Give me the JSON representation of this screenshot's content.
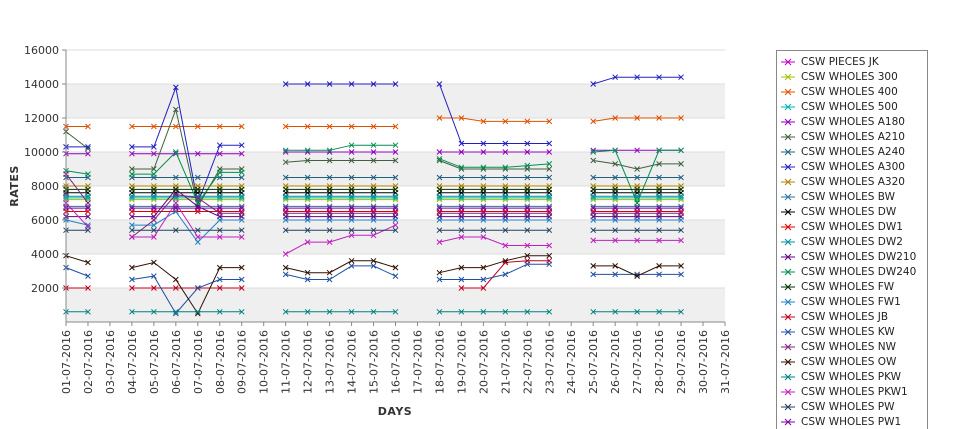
{
  "chart_data": {
    "type": "line",
    "title": "",
    "xlabel": "DAYS",
    "ylabel": "RATES",
    "ylim": [
      0,
      16000
    ],
    "yticks": [
      "2000",
      "4000",
      "6000",
      "8000",
      "10000",
      "12000",
      "14000",
      "16000"
    ],
    "categories": [
      "01-07-2016",
      "02-07-2016",
      "03-07-2016",
      "04-07-2016",
      "05-07-2016",
      "06-07-2016",
      "07-07-2016",
      "08-07-2016",
      "09-07-2016",
      "10-07-2016",
      "11-07-2016",
      "12-07-2016",
      "13-07-2016",
      "14-07-2016",
      "15-07-2016",
      "16-07-2016",
      "17-07-2016",
      "18-07-2016",
      "19-07-2016",
      "20-07-2016",
      "21-07-2016",
      "22-07-2016",
      "23-07-2016",
      "24-07-2016",
      "25-07-2016",
      "26-07-2016",
      "27-07-2016",
      "28-07-2016",
      "29-07-2016",
      "30-07-2016",
      "31-07-2016"
    ],
    "grid": true,
    "legend_position": "right",
    "series": [
      {
        "name": "CSW PIECES JK",
        "color": "#c000c0",
        "values": [
          7500,
          null,
          null,
          null,
          null,
          7300,
          null,
          null,
          null,
          null,
          null,
          null,
          null,
          null,
          null,
          null,
          null,
          null,
          null,
          null,
          null,
          null,
          null,
          null,
          null,
          null,
          null,
          null,
          null,
          null,
          null
        ]
      },
      {
        "name": "CSW WHOLES 300",
        "color": "#a0c000",
        "values": [
          7200,
          7200,
          null,
          7200,
          7200,
          7200,
          7200,
          7200,
          7200,
          null,
          7200,
          7200,
          7200,
          7200,
          7200,
          7200,
          null,
          7200,
          7200,
          7200,
          7200,
          7200,
          7200,
          null,
          7200,
          7200,
          7200,
          7200,
          7200,
          null,
          null
        ]
      },
      {
        "name": "CSW WHOLES 400",
        "color": "#e05000",
        "values": [
          11500,
          11500,
          null,
          11500,
          11500,
          11500,
          11500,
          11500,
          11500,
          null,
          11500,
          11500,
          11500,
          11500,
          11500,
          11500,
          null,
          12000,
          12000,
          11800,
          11800,
          11800,
          11800,
          null,
          11800,
          12000,
          12000,
          12000,
          12000,
          null,
          null
        ]
      },
      {
        "name": "CSW WHOLES 500",
        "color": "#00b0b0",
        "values": [
          7300,
          7300,
          null,
          7300,
          7300,
          7300,
          7300,
          7300,
          7300,
          null,
          7300,
          7300,
          7300,
          7300,
          7300,
          7300,
          null,
          7300,
          7300,
          7300,
          7300,
          7300,
          7300,
          null,
          7300,
          7300,
          7300,
          7300,
          7300,
          null,
          null
        ]
      },
      {
        "name": "CSW WHOLES A180",
        "color": "#9000c0",
        "values": [
          9900,
          9900,
          null,
          9900,
          9900,
          9900,
          9900,
          9900,
          9900,
          null,
          10000,
          10000,
          10000,
          10000,
          10000,
          10000,
          null,
          10000,
          10000,
          10000,
          10000,
          10000,
          10000,
          null,
          10100,
          10100,
          10100,
          10100,
          10100,
          null,
          null
        ]
      },
      {
        "name": "CSW WHOLES A210",
        "color": "#406040",
        "values": [
          11200,
          10200,
          null,
          9000,
          9000,
          12500,
          6800,
          9000,
          9000,
          null,
          9400,
          9500,
          9500,
          9500,
          9500,
          9500,
          null,
          9500,
          9000,
          9000,
          9000,
          9000,
          9000,
          null,
          9500,
          9300,
          9000,
          9300,
          9300,
          null,
          null
        ]
      },
      {
        "name": "CSW WHOLES A240",
        "color": "#206080",
        "values": [
          8500,
          8500,
          null,
          8500,
          8500,
          8500,
          8500,
          8500,
          8500,
          null,
          8500,
          8500,
          8500,
          8500,
          8500,
          8500,
          null,
          8500,
          8500,
          8500,
          8500,
          8500,
          8500,
          null,
          8500,
          8500,
          8500,
          8500,
          8500,
          null,
          null
        ]
      },
      {
        "name": "CSW WHOLES A300",
        "color": "#2020c0",
        "values": [
          10300,
          10300,
          null,
          10300,
          10300,
          13800,
          7000,
          10400,
          10400,
          null,
          14000,
          14000,
          14000,
          14000,
          14000,
          14000,
          null,
          14000,
          10500,
          10500,
          10500,
          10500,
          10500,
          null,
          14000,
          14400,
          14400,
          14400,
          14400,
          null,
          null
        ]
      },
      {
        "name": "CSW WHOLES A320",
        "color": "#b08000",
        "values": [
          8000,
          8000,
          null,
          8000,
          8000,
          8000,
          8000,
          8000,
          8000,
          null,
          8000,
          8000,
          8000,
          8000,
          8000,
          8000,
          null,
          8000,
          8000,
          8000,
          8000,
          8000,
          8000,
          null,
          8000,
          8000,
          8000,
          8000,
          8000,
          null,
          null
        ]
      },
      {
        "name": "CSW WHOLES BW",
        "color": "#3070a0",
        "values": [
          6800,
          6800,
          null,
          6800,
          6800,
          6800,
          6800,
          6800,
          6800,
          null,
          6800,
          6800,
          6800,
          6800,
          6800,
          6800,
          null,
          6800,
          6800,
          6800,
          6800,
          6800,
          6800,
          null,
          6800,
          6800,
          6800,
          6800,
          6800,
          null,
          null
        ]
      },
      {
        "name": "CSW WHOLES DW",
        "color": "#000000",
        "values": [
          7600,
          7600,
          null,
          7600,
          7600,
          7600,
          7600,
          7600,
          7600,
          null,
          7600,
          7600,
          7600,
          7600,
          7600,
          7600,
          null,
          7600,
          7600,
          7600,
          7600,
          7600,
          7600,
          null,
          7600,
          7600,
          7600,
          7600,
          7600,
          null,
          null
        ]
      },
      {
        "name": "CSW WHOLES DW1",
        "color": "#e00000",
        "values": [
          6500,
          6500,
          null,
          6500,
          6500,
          6500,
          6500,
          6500,
          6500,
          null,
          6500,
          6500,
          6500,
          6500,
          6500,
          6500,
          null,
          6500,
          6500,
          6500,
          6500,
          6500,
          6500,
          null,
          6500,
          6500,
          6500,
          6500,
          6500,
          null,
          null
        ]
      },
      {
        "name": "CSW WHOLES DW2",
        "color": "#0090a0",
        "values": [
          7400,
          7400,
          null,
          7400,
          7400,
          7400,
          7400,
          7400,
          7400,
          null,
          7400,
          7400,
          7400,
          7400,
          7400,
          7400,
          null,
          7400,
          7400,
          7400,
          7400,
          7400,
          7400,
          null,
          7400,
          7400,
          7400,
          7400,
          7400,
          null,
          null
        ]
      },
      {
        "name": "CSW WHOLES DW210",
        "color": "#600080",
        "values": [
          6200,
          6200,
          null,
          6200,
          6200,
          7800,
          6800,
          6200,
          6200,
          null,
          6200,
          6200,
          6200,
          6200,
          6200,
          6200,
          null,
          6200,
          6200,
          6200,
          6200,
          6200,
          6200,
          null,
          6200,
          6200,
          6200,
          6200,
          6200,
          null,
          null
        ]
      },
      {
        "name": "CSW WHOLES DW240",
        "color": "#009050",
        "values": [
          8900,
          8700,
          null,
          8700,
          8700,
          10000,
          7000,
          8800,
          8800,
          null,
          10100,
          10100,
          10100,
          10400,
          10400,
          10400,
          null,
          9600,
          9100,
          9100,
          9100,
          9200,
          9300,
          null,
          10000,
          10100,
          7000,
          10100,
          10100,
          null,
          null
        ]
      },
      {
        "name": "CSW WHOLES FW",
        "color": "#003000",
        "values": [
          7800,
          7800,
          null,
          7800,
          7800,
          7800,
          7800,
          7800,
          7800,
          null,
          7800,
          7800,
          7800,
          7800,
          7800,
          7800,
          null,
          7800,
          7800,
          7800,
          7800,
          7800,
          7800,
          null,
          7800,
          7800,
          7800,
          7800,
          7800,
          null,
          null
        ]
      },
      {
        "name": "CSW WHOLES FW1",
        "color": "#2080c0",
        "values": [
          6000,
          5700,
          null,
          5700,
          5700,
          6500,
          4700,
          6000,
          6000,
          null,
          6000,
          6000,
          6000,
          6000,
          6000,
          6000,
          null,
          6000,
          6000,
          6000,
          6000,
          6000,
          6000,
          null,
          6000,
          6000,
          6000,
          6000,
          6000,
          null,
          null
        ]
      },
      {
        "name": "CSW WHOLES JB",
        "color": "#c00020",
        "values": [
          2000,
          2000,
          null,
          2000,
          2000,
          2000,
          2000,
          2000,
          2000,
          null,
          null,
          null,
          null,
          null,
          null,
          null,
          null,
          null,
          2000,
          2000,
          3500,
          3600,
          3600,
          null,
          null,
          null,
          null,
          null,
          null,
          null,
          null
        ]
      },
      {
        "name": "CSW WHOLES KW",
        "color": "#2050a0",
        "values": [
          3200,
          2700,
          null,
          2500,
          2700,
          500,
          2000,
          2500,
          2500,
          null,
          2800,
          2500,
          2500,
          3300,
          3300,
          2700,
          null,
          2500,
          2500,
          2500,
          2800,
          3400,
          3400,
          null,
          2800,
          2800,
          2800,
          2800,
          2800,
          null,
          null
        ]
      },
      {
        "name": "CSW WHOLES NW",
        "color": "#802080",
        "values": [
          8700,
          7000,
          null,
          5000,
          6000,
          7500,
          7300,
          6400,
          6400,
          null,
          6400,
          6400,
          6400,
          6400,
          6400,
          6400,
          null,
          6400,
          6400,
          6400,
          6400,
          6400,
          6400,
          null,
          6400,
          6400,
          6400,
          6400,
          6400,
          null,
          null
        ]
      },
      {
        "name": "CSW WHOLES OW",
        "color": "#301000",
        "values": [
          3900,
          3500,
          null,
          3200,
          3500,
          2500,
          500,
          3200,
          3200,
          null,
          3200,
          2900,
          2900,
          3600,
          3600,
          3200,
          null,
          2900,
          3200,
          3200,
          3600,
          3900,
          3900,
          null,
          3300,
          3300,
          2700,
          3300,
          3300,
          null,
          null
        ]
      },
      {
        "name": "CSW WHOLES PKW",
        "color": "#008080",
        "values": [
          600,
          600,
          null,
          600,
          600,
          600,
          600,
          600,
          600,
          null,
          600,
          600,
          600,
          600,
          600,
          600,
          null,
          600,
          600,
          600,
          600,
          600,
          600,
          null,
          600,
          600,
          600,
          600,
          600,
          null,
          null
        ]
      },
      {
        "name": "CSW WHOLES PKW1",
        "color": "#c020c0",
        "values": [
          7000,
          5600,
          null,
          5000,
          5000,
          7000,
          5000,
          5000,
          5000,
          null,
          4000,
          4700,
          4700,
          5100,
          5100,
          5700,
          null,
          4700,
          5000,
          5000,
          4500,
          4500,
          4500,
          null,
          4800,
          4800,
          4800,
          4800,
          4800,
          null,
          null
        ]
      },
      {
        "name": "CSW WHOLES PW",
        "color": "#204060",
        "values": [
          5400,
          5400,
          null,
          5400,
          5400,
          5400,
          5400,
          5400,
          5400,
          null,
          5400,
          5400,
          5400,
          5400,
          5400,
          5400,
          null,
          5400,
          5400,
          5400,
          5400,
          5400,
          5400,
          null,
          5400,
          5400,
          5400,
          5400,
          5400,
          null,
          null
        ]
      },
      {
        "name": "CSW WHOLES PW1",
        "color": "#8000a0",
        "values": [
          6700,
          6700,
          null,
          6700,
          6700,
          6700,
          6700,
          6700,
          6700,
          null,
          6700,
          6700,
          6700,
          6700,
          6700,
          6700,
          null,
          6700,
          6700,
          6700,
          6700,
          6700,
          6700,
          null,
          6700,
          6700,
          6700,
          6700,
          6700,
          null,
          null
        ]
      }
    ]
  }
}
